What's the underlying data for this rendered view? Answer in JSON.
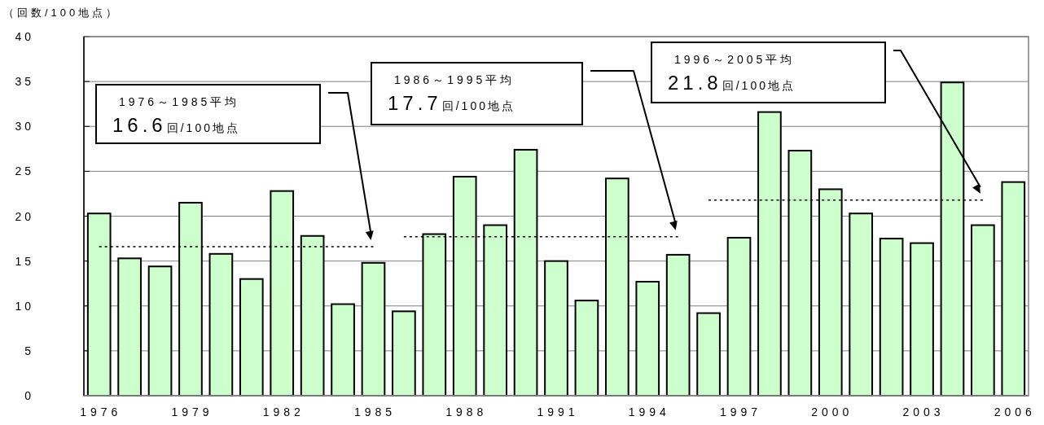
{
  "chart_data": {
    "type": "bar",
    "ylabel": "（回数/100地点）",
    "x": [
      1976,
      1977,
      1978,
      1979,
      1980,
      1981,
      1982,
      1983,
      1984,
      1985,
      1986,
      1987,
      1988,
      1989,
      1990,
      1991,
      1992,
      1993,
      1994,
      1995,
      1996,
      1997,
      1998,
      1999,
      2000,
      2001,
      2002,
      2003,
      2004,
      2005,
      2006
    ],
    "xlim": [
      1975.5,
      2006.5
    ],
    "xticks": [
      1976,
      1979,
      1982,
      1985,
      1988,
      1991,
      1994,
      1997,
      2000,
      2003,
      2006
    ],
    "ylim": [
      0,
      40
    ],
    "yticks": [
      0,
      5,
      10,
      15,
      20,
      25,
      30,
      35,
      40
    ],
    "grid": "y",
    "series": [
      {
        "color": "#ccffcc",
        "values": [
          20.3,
          15.3,
          14.4,
          21.5,
          15.8,
          13.0,
          22.8,
          17.8,
          10.2,
          14.8,
          9.4,
          18.0,
          24.4,
          19.0,
          27.4,
          15.0,
          10.6,
          24.2,
          12.7,
          15.7,
          9.2,
          17.6,
          31.6,
          27.3,
          23.0,
          20.3,
          17.5,
          17.0,
          34.9,
          19.0,
          23.8
        ]
      },
      {
        "type": "line",
        "color": "#000000",
        "line_style": "dotted",
        "x": [
          1976,
          1985
        ],
        "values": [
          16.6,
          16.6
        ]
      },
      {
        "type": "line",
        "color": "#000000",
        "line_style": "dotted",
        "x": [
          1986,
          1995
        ],
        "values": [
          17.7,
          17.7
        ]
      },
      {
        "type": "line",
        "color": "#000000",
        "line_style": "dotted",
        "x": [
          1996,
          2005
        ],
        "values": [
          21.8,
          21.8
        ]
      }
    ],
    "annotations": [
      "1976～1985平均\n16.6回/100地点",
      "1986～1995平均\n17.7回/100地点",
      "1996～2005平均\n21.8回/100地点"
    ]
  }
}
